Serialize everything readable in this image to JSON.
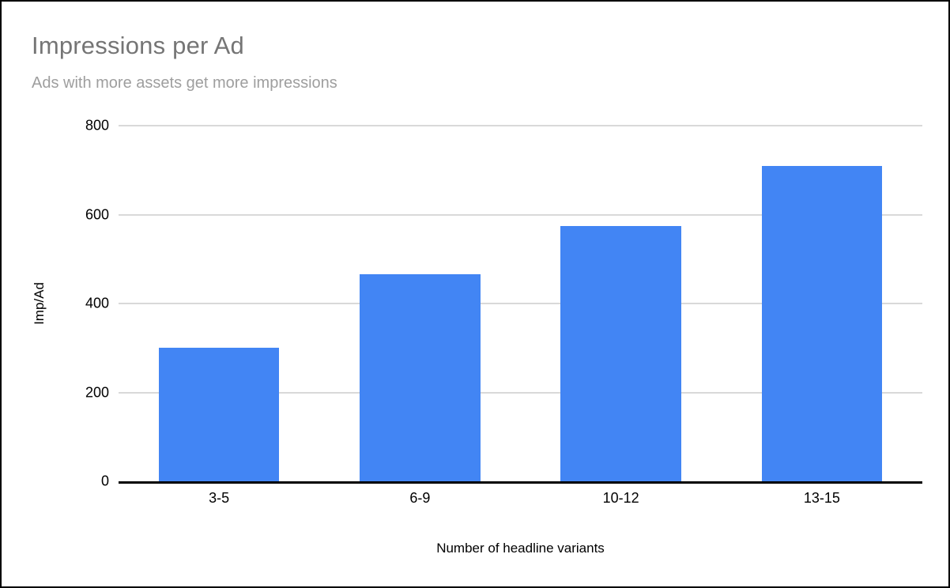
{
  "chart_data": {
    "type": "bar",
    "title": "Impressions per Ad",
    "subtitle": "Ads with more assets get more impressions",
    "categories": [
      "3-5",
      "6-9",
      "10-12",
      "13-15"
    ],
    "values": [
      300,
      465,
      575,
      710
    ],
    "xlabel": "Number of headline variants",
    "ylabel": "Imp/Ad",
    "ylim": [
      0,
      800
    ],
    "yticks": [
      0,
      200,
      400,
      600,
      800
    ],
    "grid": true,
    "legend_position": "none",
    "bar_color": "#4285f4",
    "title_color": "#757575",
    "subtitle_color": "#9e9e9e",
    "gridline_color": "#d9d9d9",
    "axis_color": "#000000",
    "background_color": "#ffffff"
  }
}
